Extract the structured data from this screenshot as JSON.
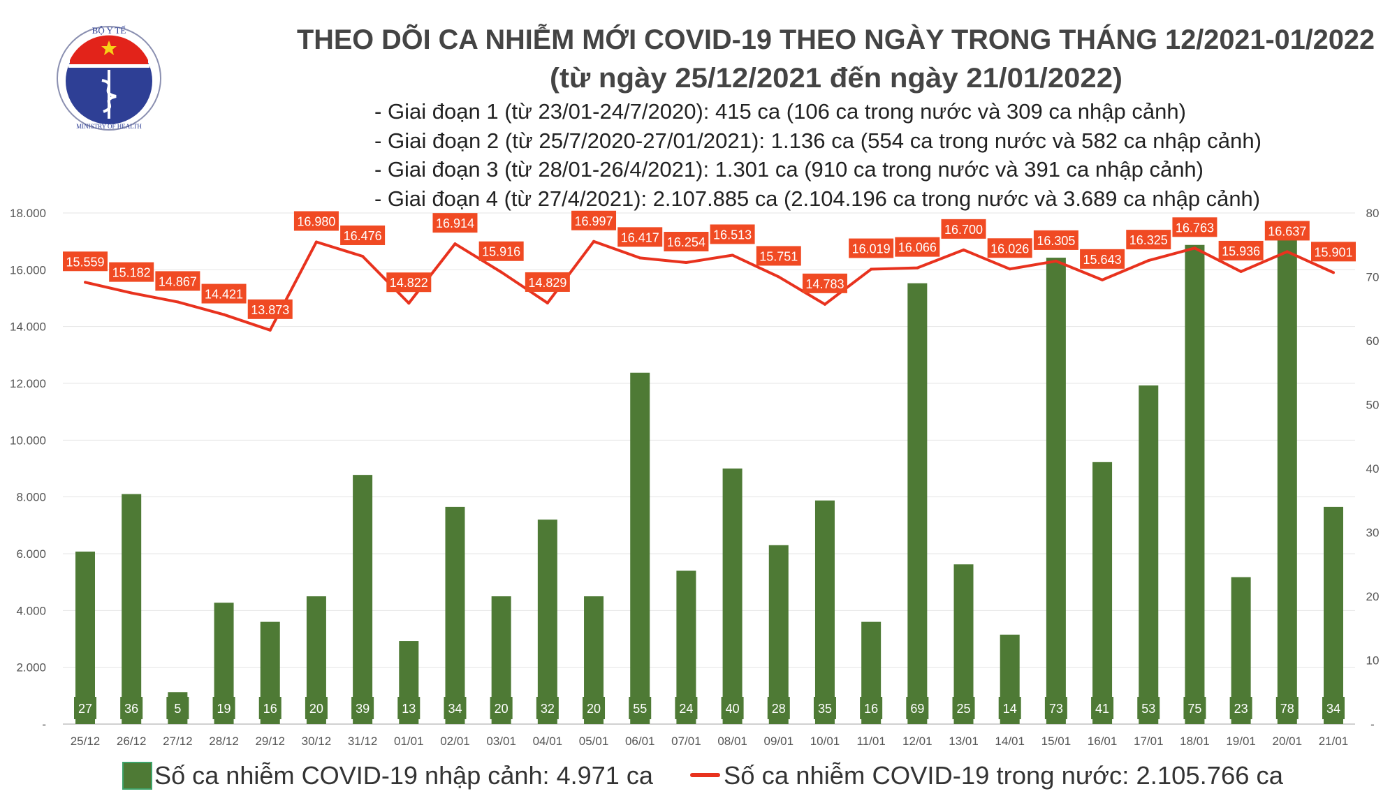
{
  "header": {
    "logo_text_top": "BỘ Y TẾ",
    "logo_text_bottom": "MINISTRY OF HEALTH",
    "title": "THEO DÕI CA NHIỄM MỚI COVID-19 THEO NGÀY TRONG THÁNG 12/2021-01/2022",
    "subtitle": "(từ ngày 25/12/2021 đến ngày 21/01/2022)",
    "phases": [
      "- Giai đoạn 1 (từ 23/01-24/7/2020): 415 ca (106 ca trong nước và 309 ca nhập cảnh)",
      "- Giai đoạn 2 (từ 25/7/2020-27/01/2021): 1.136 ca (554 ca trong nước và 582 ca nhập cảnh)",
      "- Giai đoạn 3 (từ 28/01-26/4/2021): 1.301 ca (910 ca trong nước và 391 ca nhập cảnh)",
      "- Giai đoạn 4 (từ 27/4/2021): 2.107.885 ca (2.104.196 ca trong nước và 3.689 ca nhập cảnh)"
    ]
  },
  "chart_data": {
    "type": "bar+line",
    "title": "THEO DÕI CA NHIỄM MỚI COVID-19 THEO NGÀY TRONG THÁNG 12/2021-01/2022",
    "categories": [
      "25/12",
      "26/12",
      "27/12",
      "28/12",
      "29/12",
      "30/12",
      "31/12",
      "01/01",
      "02/01",
      "03/01",
      "04/01",
      "05/01",
      "06/01",
      "07/01",
      "08/01",
      "09/01",
      "10/01",
      "11/01",
      "12/01",
      "13/01",
      "14/01",
      "15/01",
      "16/01",
      "17/01",
      "18/01",
      "19/01",
      "20/01",
      "21/01"
    ],
    "series": [
      {
        "name": "Số ca nhiễm COVID-19 nhập cảnh: 4.971 ca",
        "type": "bar",
        "axis": "right",
        "color": "#4e7a35",
        "values": [
          27,
          36,
          5,
          19,
          16,
          20,
          39,
          13,
          34,
          20,
          32,
          20,
          55,
          24,
          40,
          28,
          35,
          16,
          69,
          25,
          14,
          73,
          41,
          53,
          75,
          23,
          78,
          34
        ]
      },
      {
        "name": "Số ca nhiễm COVID-19 trong nước: 2.105.766 ca",
        "type": "line",
        "axis": "left",
        "color": "#e8321e",
        "values": [
          15559,
          15182,
          14867,
          14421,
          13873,
          16980,
          16476,
          14822,
          16914,
          15916,
          14829,
          16997,
          16417,
          16254,
          16513,
          15751,
          14783,
          16019,
          16066,
          16700,
          16026,
          16305,
          15643,
          16325,
          16763,
          15936,
          16637,
          15901
        ]
      }
    ],
    "left_axis": {
      "ylim": [
        0,
        18000
      ],
      "ticks": [
        0,
        2000,
        4000,
        6000,
        8000,
        10000,
        12000,
        14000,
        16000,
        18000
      ],
      "tick_labels": [
        "-",
        "2.000",
        "4.000",
        "6.000",
        "8.000",
        "10.000",
        "12.000",
        "14.000",
        "16.000",
        "18.000"
      ]
    },
    "right_axis": {
      "ylim": [
        0,
        80
      ],
      "ticks": [
        0,
        10,
        20,
        30,
        40,
        50,
        60,
        70,
        80
      ],
      "tick_labels": [
        "-",
        "10",
        "20",
        "30",
        "40",
        "50",
        "60",
        "70",
        "80"
      ]
    },
    "grid": true,
    "legend_placement": "bottom"
  }
}
